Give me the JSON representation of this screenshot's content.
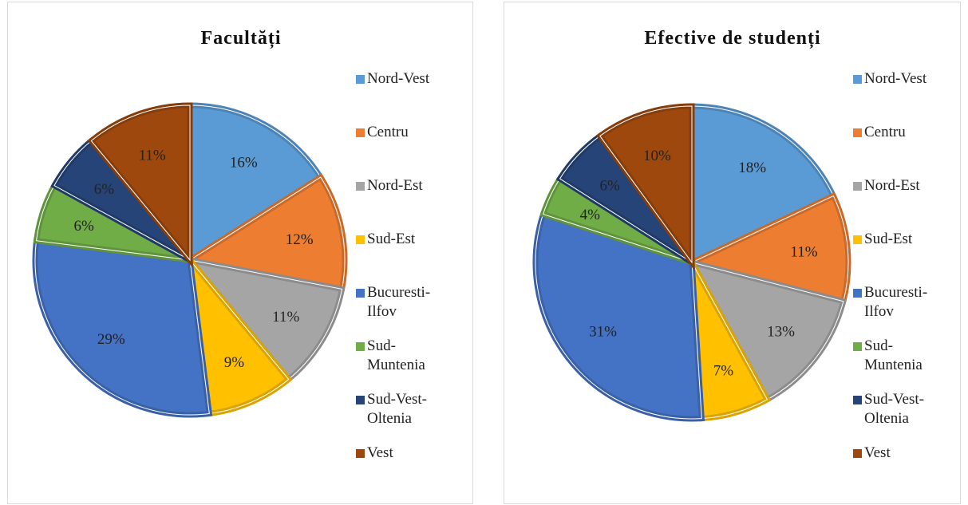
{
  "chart_data": [
    {
      "type": "pie",
      "title": "Facultăți",
      "categories": [
        "Nord-Vest",
        "Centru",
        "Nord-Est",
        "Sud-Est",
        "Bucuresti-Ilfov",
        "Sud-Muntenia",
        "Sud-Vest-Oltenia",
        "Vest"
      ],
      "values": [
        16,
        12,
        11,
        9,
        29,
        6,
        6,
        11
      ],
      "value_labels": [
        "16%",
        "12%",
        "11%",
        "9%",
        "29%",
        "6%",
        "6%",
        "11%"
      ],
      "colors": [
        "#5b9bd5",
        "#ed7d31",
        "#a5a5a5",
        "#ffc000",
        "#4472c4",
        "#70ad47",
        "#264478",
        "#9e480e"
      ]
    },
    {
      "type": "pie",
      "title": "Efective de studenți",
      "categories": [
        "Nord-Vest",
        "Centru",
        "Nord-Est",
        "Sud-Est",
        "Bucuresti-Ilfov",
        "Sud-Muntenia",
        "Sud-Vest-Oltenia",
        "Vest"
      ],
      "values": [
        18,
        11,
        13,
        7,
        31,
        4,
        6,
        10
      ],
      "value_labels": [
        "18%",
        "11%",
        "13%",
        "7%",
        "31%",
        "4%",
        "6%",
        "10%"
      ],
      "colors": [
        "#5b9bd5",
        "#ed7d31",
        "#a5a5a5",
        "#ffc000",
        "#4472c4",
        "#70ad47",
        "#264478",
        "#9e480e"
      ]
    }
  ]
}
